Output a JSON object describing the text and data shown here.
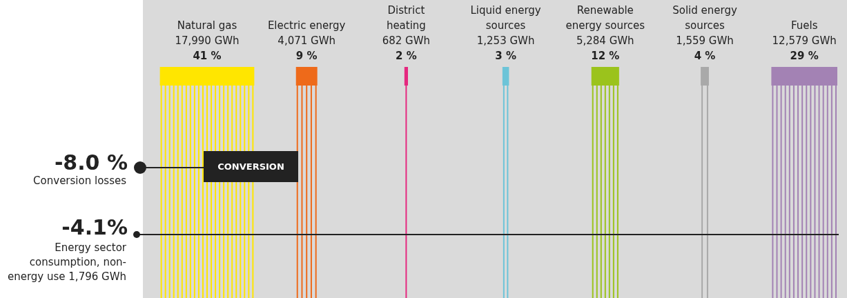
{
  "chart_data": {
    "type": "other",
    "categories": [
      "Natural gas",
      "Electric energy",
      "District\nheating",
      "Liquid energy\nsources",
      "Renewable\nenergy sources",
      "Solid energy\nsources",
      "Fuels"
    ],
    "colors": [
      "#ffe600",
      "#ee6a1a",
      "#e5287f",
      "#6cc4d8",
      "#9bc31c",
      "#a9a9a9",
      "#a382b4"
    ],
    "series": [
      {
        "values": [
          17990,
          4071,
          682,
          1253,
          5284,
          1559,
          12579
        ],
        "value_labels": [
          "17,990 GWh",
          "4,071 GWh",
          "682 GWh",
          "1,253 GWh",
          "5,284 GWh",
          "1,559 GWh",
          "12,579 GWh"
        ]
      },
      {
        "values": [
          41,
          9,
          2,
          3,
          12,
          4,
          29
        ],
        "value_labels": [
          "41 %",
          "9 %",
          "2 %",
          "3 %",
          "12 %",
          "4 %",
          "29 %"
        ]
      }
    ],
    "annotations": [
      "-8.0 %",
      "Conversion losses",
      "CONVERSION",
      "-4.1%",
      "Energy sector consumption, non-energy use 1,796 GWh"
    ]
  }
}
